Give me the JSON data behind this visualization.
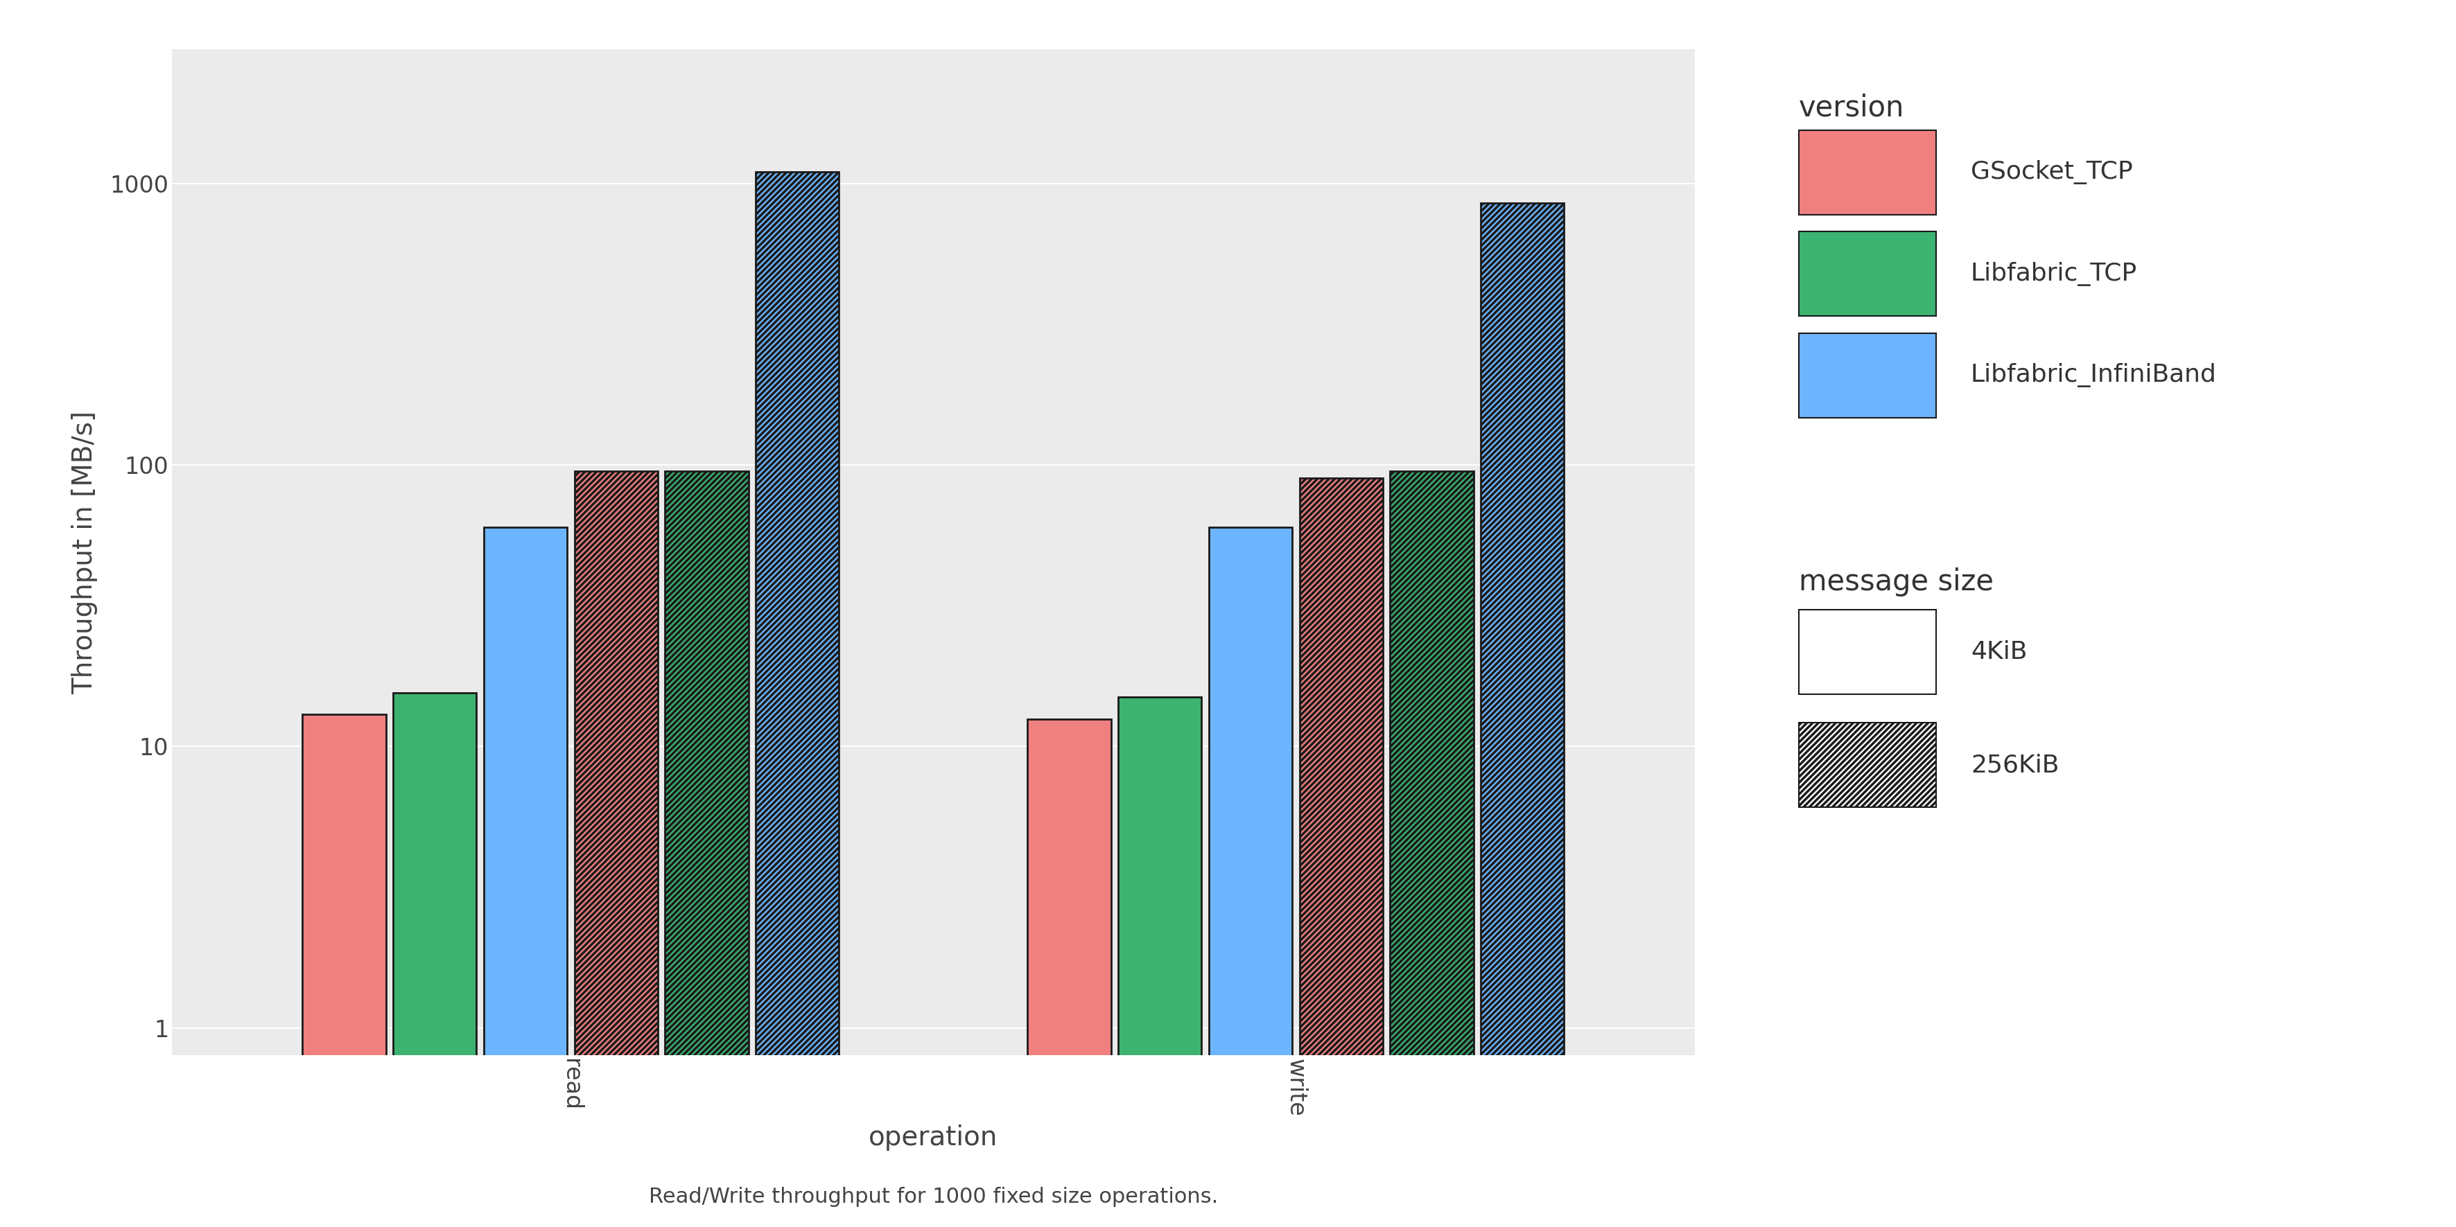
{
  "groups": [
    "read",
    "write"
  ],
  "versions": [
    "GSocket_TCP",
    "Libfabric_TCP",
    "Libfabric_InfiniBand"
  ],
  "colors": {
    "GSocket_TCP": "#F08080",
    "Libfabric_TCP": "#3CB371",
    "Libfabric_InfiniBand": "#6EB5FF"
  },
  "edge_color": "#1a1a1a",
  "values": {
    "read": {
      "4KiB": {
        "GSocket_TCP": 13.0,
        "Libfabric_TCP": 15.5,
        "Libfabric_InfiniBand": 60.0
      },
      "256KiB": {
        "GSocket_TCP": 95.0,
        "Libfabric_TCP": 95.0,
        "Libfabric_InfiniBand": 1100.0
      }
    },
    "write": {
      "4KiB": {
        "GSocket_TCP": 12.5,
        "Libfabric_TCP": 15.0,
        "Libfabric_InfiniBand": 60.0
      },
      "256KiB": {
        "GSocket_TCP": 90.0,
        "Libfabric_TCP": 95.0,
        "Libfabric_InfiniBand": 850.0
      }
    }
  },
  "ylabel": "Throughput in [MB/s]",
  "xlabel": "operation",
  "caption": "Read/Write throughput for 1000 fixed size operations.",
  "legend_title_version": "version",
  "legend_title_size": "message size",
  "ylim": [
    0.8,
    3000
  ],
  "background_color": "#EBEBEB",
  "outer_background": "#FFFFFF",
  "grid_color": "#FFFFFF",
  "axis_fontsize": 28,
  "tick_fontsize": 24,
  "legend_title_fontsize": 30,
  "legend_fontsize": 26,
  "caption_fontsize": 22
}
